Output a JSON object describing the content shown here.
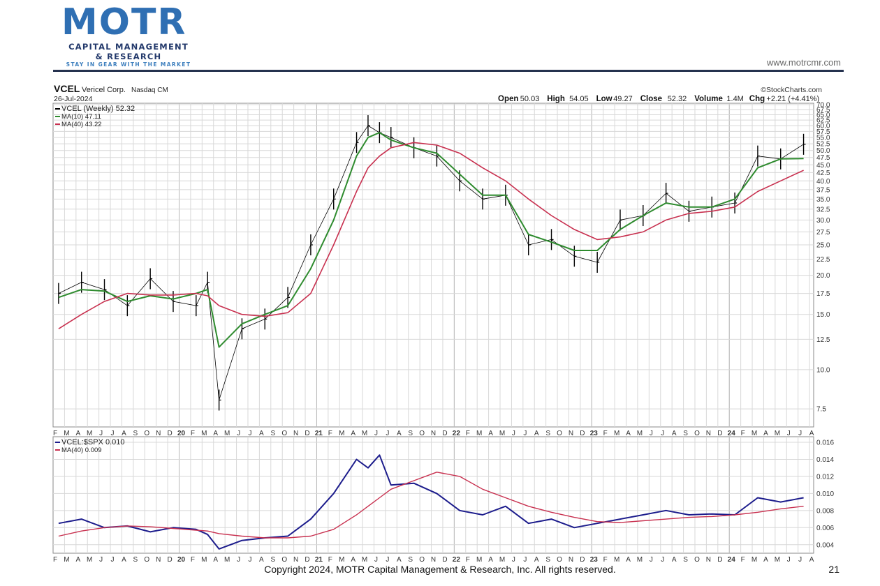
{
  "logo": {
    "word": "MOTR",
    "line1": "CAPITAL MANAGEMENT",
    "line2": "& RESEARCH",
    "tagline": "STAY IN GEAR WITH THE MARKET"
  },
  "website": "www.motrcmr.com",
  "footer": "Copyright 2024, MOTR Capital Management & Research, Inc. All rights reserved.",
  "page_number": "21",
  "colors": {
    "price_bar": "#000000",
    "ma10": "#2e8b2e",
    "ma40": "#c8304f",
    "ratio": "#1c1c8c",
    "grid": "#d8d8d8"
  },
  "chart_data": [
    {
      "type": "line",
      "ticker": "VCEL",
      "company": "Vericel Corp.",
      "exchange": "Nasdaq CM",
      "date": "26-Jul-2024",
      "source": "©StockCharts.com",
      "ohlc": [
        {
          "label": "Open",
          "value": "50.03"
        },
        {
          "label": "High",
          "value": "54.05"
        },
        {
          "label": "Low",
          "value": "49.27"
        },
        {
          "label": "Close",
          "value": "52.32"
        },
        {
          "label": "Volume",
          "value": "1.4M"
        },
        {
          "label": "Chg",
          "value": "+2.21 (+4.41%)"
        }
      ],
      "legend": [
        {
          "text": "VCEL (Weekly) 52.32",
          "color": "#000000"
        },
        {
          "text": "MA(10) 47.11",
          "color": "#2e8b2e"
        },
        {
          "text": "MA(40) 43.22",
          "color": "#c8304f"
        }
      ],
      "scale": "log",
      "ylim": [
        6.5,
        70
      ],
      "y_ticks": [
        "70.0",
        "67.5",
        "65.0",
        "62.5",
        "60.0",
        "57.5",
        "55.0",
        "52.5",
        "50.0",
        "47.5",
        "45.0",
        "42.5",
        "40.0",
        "37.5",
        "35.0",
        "32.5",
        "30.0",
        "27.5",
        "25.0",
        "22.5",
        "20.0",
        "17.5",
        "15.0",
        "12.5",
        "10.0",
        "7.5"
      ],
      "x_ticks": [
        "F",
        "M",
        "A",
        "M",
        "J",
        "J",
        "A",
        "S",
        "O",
        "N",
        "D",
        "20",
        "F",
        "M",
        "A",
        "M",
        "J",
        "J",
        "A",
        "S",
        "O",
        "N",
        "D",
        "21",
        "F",
        "M",
        "A",
        "M",
        "J",
        "J",
        "A",
        "S",
        "O",
        "N",
        "D",
        "22",
        "F",
        "M",
        "A",
        "M",
        "J",
        "J",
        "A",
        "S",
        "O",
        "N",
        "D",
        "23",
        "F",
        "M",
        "A",
        "M",
        "J",
        "J",
        "A",
        "S",
        "O",
        "N",
        "D",
        "24",
        "F",
        "M",
        "A",
        "M",
        "J",
        "J",
        "A"
      ],
      "x": [
        "2019-02",
        "2019-04",
        "2019-06",
        "2019-08",
        "2019-10",
        "2019-12",
        "2020-02",
        "2020-03",
        "2020-04",
        "2020-06",
        "2020-08",
        "2020-10",
        "2020-12",
        "2021-02",
        "2021-04",
        "2021-05",
        "2021-06",
        "2021-07",
        "2021-09",
        "2021-11",
        "2022-01",
        "2022-03",
        "2022-05",
        "2022-07",
        "2022-09",
        "2022-11",
        "2023-01",
        "2023-03",
        "2023-05",
        "2023-07",
        "2023-09",
        "2023-11",
        "2024-01",
        "2024-03",
        "2024-05",
        "2024-07"
      ],
      "series": [
        {
          "name": "VCEL (Weekly)",
          "values": [
            17.5,
            19.0,
            18.0,
            16.0,
            19.5,
            16.5,
            16.0,
            19.0,
            8.0,
            13.5,
            14.5,
            17.0,
            25.0,
            35.0,
            53.0,
            60.0,
            57.0,
            55.0,
            51.0,
            48.0,
            40.0,
            35.0,
            36.0,
            25.0,
            26.0,
            23.0,
            22.0,
            30.0,
            31.0,
            36.5,
            32.0,
            33.0,
            34.0,
            48.0,
            47.0,
            52.32
          ]
        },
        {
          "name": "MA(10)",
          "values": [
            17.0,
            18.0,
            17.8,
            16.5,
            17.2,
            16.8,
            17.5,
            18.0,
            11.8,
            14.0,
            15.0,
            16.0,
            21.0,
            30.0,
            48.0,
            55.0,
            57.0,
            54.0,
            51.0,
            49.0,
            42.0,
            36.0,
            36.0,
            27.0,
            25.5,
            24.0,
            24.0,
            28.0,
            31.0,
            34.0,
            33.0,
            33.0,
            35.0,
            44.0,
            47.0,
            47.11
          ]
        },
        {
          "name": "MA(40)",
          "values": [
            13.5,
            15.0,
            16.5,
            17.5,
            17.3,
            17.3,
            17.5,
            17.2,
            16.0,
            15.0,
            14.8,
            15.2,
            17.5,
            25.0,
            37.0,
            44.0,
            48.0,
            51.0,
            53.0,
            52.0,
            49.0,
            44.0,
            40.0,
            35.0,
            31.0,
            28.0,
            26.0,
            26.5,
            27.5,
            30.0,
            31.5,
            32.0,
            33.0,
            37.0,
            40.0,
            43.22
          ]
        }
      ]
    },
    {
      "type": "line",
      "legend": [
        {
          "text": "VCEL:$SPX 0.010",
          "color": "#1c1c8c"
        },
        {
          "text": "MA(40) 0.009",
          "color": "#c8304f"
        }
      ],
      "ylim": [
        0.003,
        0.016
      ],
      "y_ticks": [
        "0.016",
        "0.014",
        "0.012",
        "0.010",
        "0.008",
        "0.006",
        "0.004"
      ],
      "x_ticks": [
        "F",
        "M",
        "A",
        "M",
        "J",
        "J",
        "A",
        "S",
        "O",
        "N",
        "D",
        "20",
        "F",
        "M",
        "A",
        "M",
        "J",
        "J",
        "A",
        "S",
        "O",
        "N",
        "D",
        "21",
        "F",
        "M",
        "A",
        "M",
        "J",
        "J",
        "A",
        "S",
        "O",
        "N",
        "D",
        "22",
        "F",
        "M",
        "A",
        "M",
        "J",
        "J",
        "A",
        "S",
        "O",
        "N",
        "D",
        "23",
        "F",
        "M",
        "A",
        "M",
        "J",
        "J",
        "A",
        "S",
        "O",
        "N",
        "D",
        "24",
        "F",
        "M",
        "A",
        "M",
        "J",
        "J",
        "A"
      ],
      "x": [
        "2019-02",
        "2019-04",
        "2019-06",
        "2019-08",
        "2019-10",
        "2019-12",
        "2020-02",
        "2020-03",
        "2020-04",
        "2020-06",
        "2020-08",
        "2020-10",
        "2020-12",
        "2021-02",
        "2021-04",
        "2021-05",
        "2021-06",
        "2021-07",
        "2021-09",
        "2021-11",
        "2022-01",
        "2022-03",
        "2022-05",
        "2022-07",
        "2022-09",
        "2022-11",
        "2023-01",
        "2023-03",
        "2023-05",
        "2023-07",
        "2023-09",
        "2023-11",
        "2024-01",
        "2024-03",
        "2024-05",
        "2024-07"
      ],
      "series": [
        {
          "name": "VCEL:$SPX",
          "values": [
            0.0065,
            0.007,
            0.006,
            0.0062,
            0.0055,
            0.006,
            0.0058,
            0.0052,
            0.0035,
            0.0045,
            0.0048,
            0.005,
            0.007,
            0.01,
            0.014,
            0.013,
            0.0145,
            0.011,
            0.0112,
            0.01,
            0.008,
            0.0075,
            0.0085,
            0.0065,
            0.007,
            0.006,
            0.0065,
            0.007,
            0.0075,
            0.008,
            0.0075,
            0.0076,
            0.0075,
            0.0095,
            0.009,
            0.0095
          ]
        },
        {
          "name": "MA(40)",
          "values": [
            0.005,
            0.0056,
            0.006,
            0.0062,
            0.0061,
            0.0059,
            0.0057,
            0.0056,
            0.0053,
            0.005,
            0.0048,
            0.0048,
            0.005,
            0.0058,
            0.0075,
            0.0085,
            0.0095,
            0.0105,
            0.0115,
            0.0125,
            0.012,
            0.0105,
            0.0095,
            0.0085,
            0.0078,
            0.0072,
            0.0067,
            0.0066,
            0.0068,
            0.007,
            0.0072,
            0.0073,
            0.0075,
            0.0078,
            0.0082,
            0.0085
          ]
        }
      ]
    }
  ]
}
